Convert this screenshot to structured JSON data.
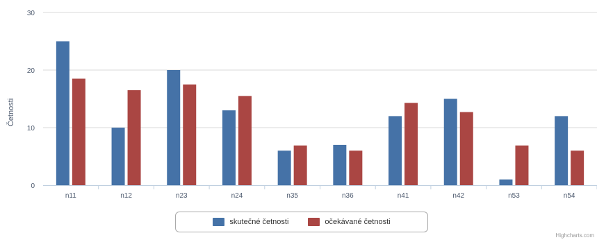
{
  "chart_data": {
    "type": "bar",
    "title": "",
    "ylabel": "Četnosti",
    "xlabel": "",
    "categories": [
      "n11",
      "n12",
      "n23",
      "n24",
      "n35",
      "n36",
      "n41",
      "n42",
      "n53",
      "n54"
    ],
    "series": [
      {
        "name": "skutečné četnosti",
        "color": "#4572a7",
        "values": [
          25,
          10,
          20,
          13,
          6,
          7,
          12,
          15,
          1,
          12
        ]
      },
      {
        "name": "očekávané četnosti",
        "color": "#aa4643",
        "values": [
          18.5,
          16.5,
          17.5,
          15.5,
          6.9,
          6.0,
          14.3,
          12.7,
          6.9,
          6.0
        ]
      }
    ],
    "ylim": [
      0,
      30
    ],
    "yticks": [
      0,
      10,
      20,
      30
    ],
    "grid": true,
    "legend_position": "bottom-center"
  },
  "credits": "Highcharts.com",
  "colors": {
    "axis": "#c0d0e0",
    "grid": "#d8d8d8",
    "label": "#4d5a6e"
  }
}
